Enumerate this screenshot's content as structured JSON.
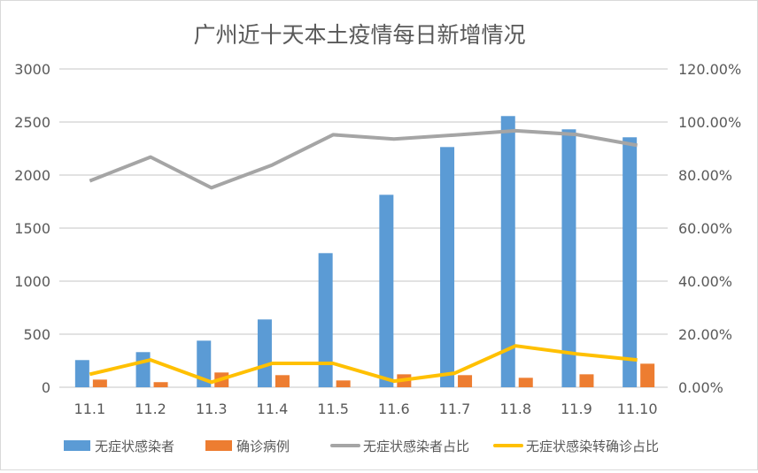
{
  "chart_data": {
    "type": "bar",
    "title": "广州近十天本土疫情每日新增情况",
    "categories": [
      "11.1",
      "11.2",
      "11.3",
      "11.4",
      "11.5",
      "11.6",
      "11.7",
      "11.8",
      "11.9",
      "11.10"
    ],
    "y_left": {
      "range": [
        0,
        3000
      ],
      "ticks": [
        "0",
        "500",
        "1000",
        "1500",
        "2000",
        "2500",
        "3000"
      ]
    },
    "y_right": {
      "range": [
        0,
        120
      ],
      "unit": "%",
      "ticks": [
        "0.00%",
        "20.00%",
        "40.00%",
        "60.00%",
        "80.00%",
        "100.00%",
        "120.00%"
      ]
    },
    "grid": true,
    "legend_position": "bottom",
    "series": [
      {
        "name": "无症状感染者",
        "type": "bar",
        "axis": "left",
        "color": "#5b9bd5",
        "values": [
          256,
          331,
          439,
          639,
          1264,
          1814,
          2264,
          2556,
          2431,
          2356
        ]
      },
      {
        "name": "确诊病例",
        "type": "bar",
        "axis": "left",
        "color": "#ed7d31",
        "values": [
          72,
          48,
          139,
          114,
          64,
          122,
          114,
          89,
          122,
          222
        ]
      },
      {
        "name": "无症状感染者占比",
        "type": "line",
        "axis": "right",
        "color": "#a5a5a5",
        "values": [
          77.8,
          86.8,
          75.2,
          83.8,
          95.2,
          93.6,
          95.1,
          96.7,
          95.3,
          91.2
        ]
      },
      {
        "name": "无症状感染转确诊占比",
        "type": "line",
        "axis": "right",
        "color": "#ffc000",
        "values": [
          4.9,
          10.3,
          1.9,
          9.0,
          9.0,
          2.3,
          5.3,
          15.6,
          12.6,
          10.3
        ]
      }
    ]
  }
}
